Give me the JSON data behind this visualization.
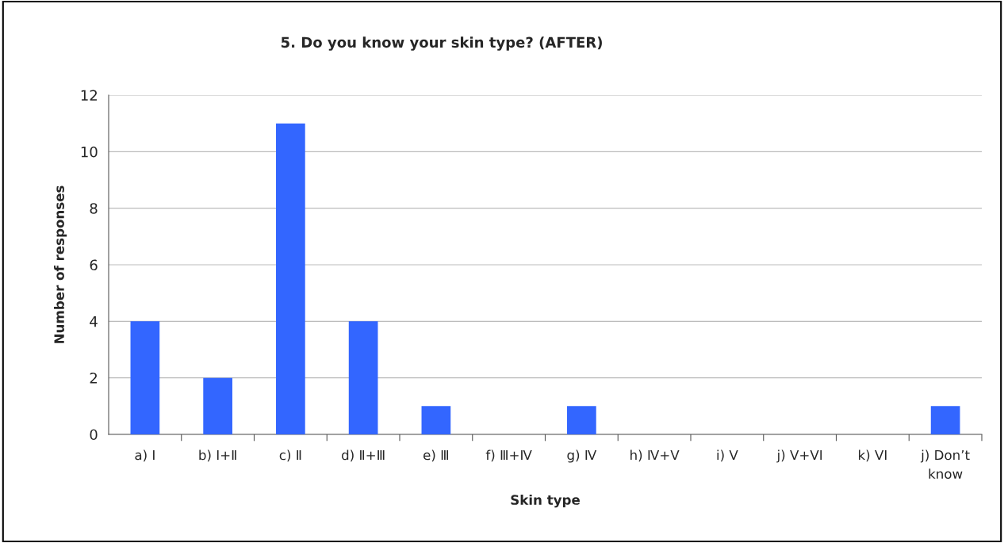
{
  "chart_data": {
    "type": "bar",
    "title": "5. Do you know your skin type? (AFTER)",
    "xlabel": "Skin type",
    "ylabel": "Number of responses",
    "categories": [
      "a) Ⅰ",
      "b) Ⅰ+Ⅱ",
      "c) Ⅱ",
      "d) Ⅱ+Ⅲ",
      "e) Ⅲ",
      "f) Ⅲ+Ⅳ",
      "g) Ⅳ",
      "h) Ⅳ+V",
      "i) V",
      "j) V+VI",
      "k) VI",
      "j) Don’t know"
    ],
    "values": [
      4,
      2,
      11,
      4,
      1,
      0,
      1,
      0,
      0,
      0,
      0,
      1
    ],
    "color": "#3366ff",
    "ylim": [
      0,
      12
    ],
    "yticks": [
      0,
      2,
      4,
      6,
      8,
      10,
      12
    ],
    "grid": "y",
    "legend": false
  }
}
